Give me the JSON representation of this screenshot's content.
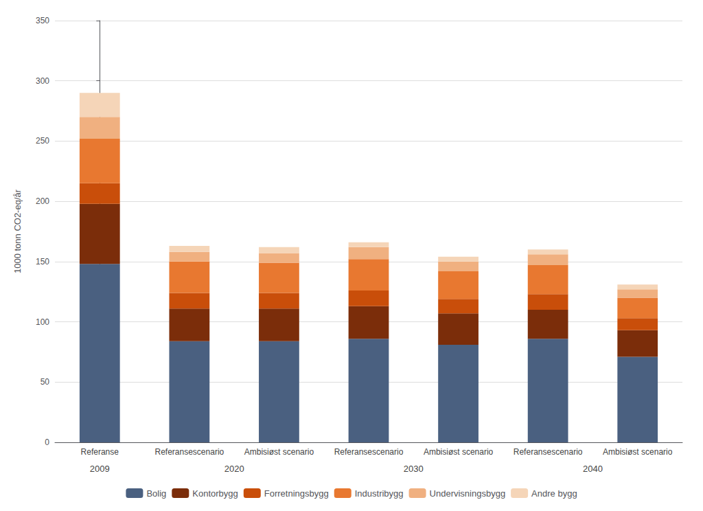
{
  "chart_data": {
    "type": "bar",
    "stacked": true,
    "ylabel": "1000 tonn CO2-eq/år",
    "categories": [
      "Referanse",
      "Referansescenario",
      "Ambisiøst scenario",
      "Referansescenario",
      "Ambisiøst scenario",
      "Referansescenario",
      "Ambisiøst scenario"
    ],
    "annotations": [
      {
        "text": "2009",
        "span": 1
      },
      {
        "text": "2020",
        "span": 2
      },
      {
        "text": "2030",
        "span": 2
      },
      {
        "text": "2040",
        "span": 2
      }
    ],
    "series": [
      {
        "name": "Bolig",
        "color": "#4a6080",
        "values": [
          148,
          84,
          84,
          86,
          81,
          86,
          71
        ]
      },
      {
        "name": "Kontorbygg",
        "color": "#7b2d0a",
        "values": [
          50,
          27,
          27,
          27,
          26,
          24,
          22
        ]
      },
      {
        "name": "Forretningsbygg",
        "color": "#c94e0a",
        "values": [
          17,
          13,
          13,
          13,
          12,
          13,
          10
        ]
      },
      {
        "name": "Industribygg",
        "color": "#e87830",
        "values": [
          37,
          26,
          25,
          26,
          23,
          24,
          17
        ]
      },
      {
        "name": "Undervisningsbygg",
        "color": "#f0b080",
        "values": [
          18,
          8,
          8,
          10,
          8,
          9,
          7
        ]
      },
      {
        "name": "Andre bygg",
        "color": "#f5d5b8",
        "values": [
          20,
          5,
          5,
          4,
          4,
          4,
          4
        ]
      }
    ],
    "ylim": [
      0,
      350
    ],
    "yticks": [
      0,
      50,
      100,
      150,
      200,
      250,
      300,
      350
    ],
    "grid": true,
    "legend": "bottom"
  }
}
